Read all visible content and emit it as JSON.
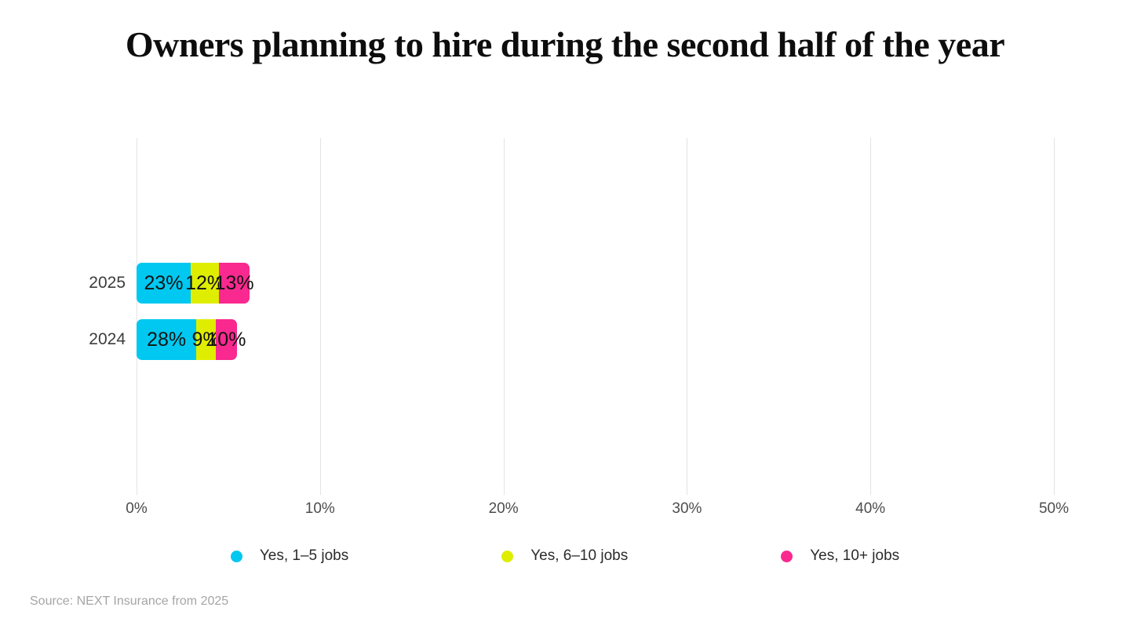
{
  "title": "Owners planning to hire during the second half of the year",
  "source": "Source: NEXT Insurance from 2025",
  "colors": {
    "series_cyan": "#00C8F0",
    "series_yellow": "#DFED00",
    "series_pink": "#F9298F",
    "gridline": "#e3e3e3",
    "title_text": "#0d0d0d",
    "axis_text": "#4d4d4d",
    "source_text": "#a5a5a5"
  },
  "chart_data": {
    "type": "bar",
    "orientation": "horizontal",
    "stacked": true,
    "title": "Owners planning to hire during the second half of the year",
    "categories": [
      "2025",
      "2024"
    ],
    "series": [
      {
        "name": "Yes, 1–5 jobs",
        "color": "#00C8F0",
        "values": [
          23,
          28
        ]
      },
      {
        "name": "Yes, 6–10 jobs",
        "color": "#DFED00",
        "values": [
          12,
          9
        ]
      },
      {
        "name": "Yes, 10+ jobs",
        "color": "#F9298F",
        "values": [
          13,
          10
        ]
      }
    ],
    "value_label_suffix": "%",
    "xlabel": "",
    "ylabel": "",
    "xlim": [
      0,
      50
    ],
    "x_ticks": [
      "0%",
      "10%",
      "20%",
      "30%",
      "40%",
      "50%"
    ],
    "grid": true,
    "legend_position": "bottom"
  }
}
